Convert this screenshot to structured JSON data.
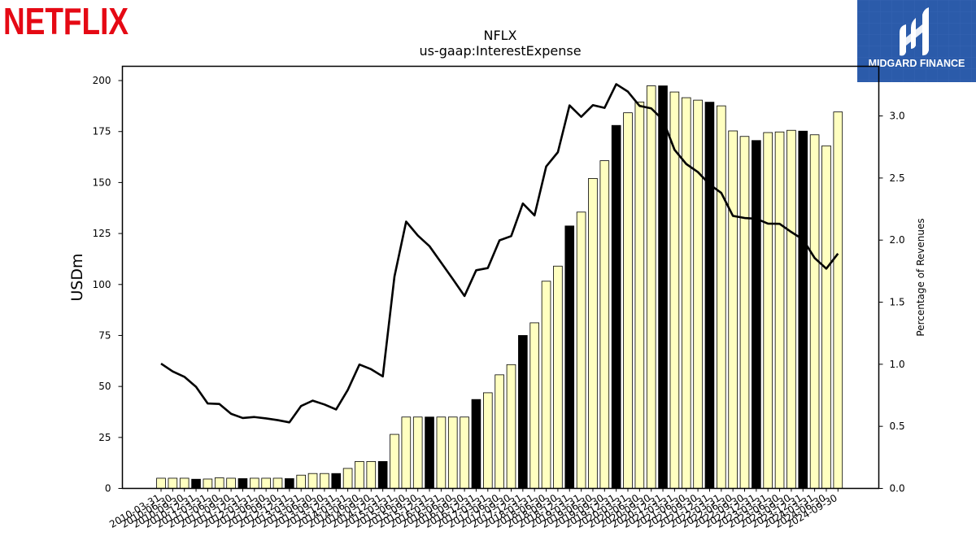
{
  "brand": {
    "logo_text": "NETFLIX",
    "logo_color": "#E50914"
  },
  "badge": {
    "text": "MIDGARD FINANCE",
    "bg_color": "#2B5BAA"
  },
  "chart_data": {
    "type": "bar+line",
    "title": "NFLX",
    "subtitle": "us-gaap:InterestExpense",
    "ylabel": "USDm",
    "y2label": "Percentage of Revenues",
    "ylim": [
      0,
      207
    ],
    "y2lim": [
      0,
      3.4
    ],
    "yticks": [
      0,
      25,
      50,
      75,
      100,
      125,
      150,
      175,
      200
    ],
    "y2ticks": [
      "0.0",
      "0.5",
      "1.0",
      "1.5",
      "2.0",
      "2.5",
      "3.0"
    ],
    "bar_color_default": "#FFFFC0",
    "bar_color_highlight": "#000000",
    "line_color": "#000000",
    "categories": [
      "2010-03-31",
      "2010-06-30",
      "2010-09-30",
      "2010-12-31",
      "2011-03-31",
      "2011-06-30",
      "2011-09-30",
      "2011-12-31",
      "2012-03-31",
      "2012-06-30",
      "2012-09-30",
      "2012-12-31",
      "2013-03-31",
      "2013-06-30",
      "2013-09-30",
      "2013-12-31",
      "2014-03-31",
      "2014-06-30",
      "2014-09-30",
      "2014-12-31",
      "2015-03-31",
      "2015-06-30",
      "2015-09-30",
      "2015-12-31",
      "2016-03-31",
      "2016-06-30",
      "2016-09-30",
      "2016-12-31",
      "2017-03-31",
      "2017-06-30",
      "2017-09-30",
      "2017-12-31",
      "2018-03-31",
      "2018-06-30",
      "2018-09-30",
      "2018-12-31",
      "2019-03-31",
      "2019-06-30",
      "2019-09-30",
      "2019-12-31",
      "2020-03-31",
      "2020-06-30",
      "2020-09-30",
      "2020-12-31",
      "2021-03-31",
      "2021-06-30",
      "2021-09-30",
      "2021-12-31",
      "2022-03-31",
      "2022-06-30",
      "2022-09-30",
      "2022-12-31",
      "2023-03-31",
      "2023-06-30",
      "2023-09-30",
      "2023-12-31",
      "2024-03-31",
      "2024-06-30",
      "2024-09-30"
    ],
    "values": [
      5,
      5,
      5,
      4.5,
      4.6,
      5.2,
      5.0,
      4.8,
      5.0,
      5.0,
      5.0,
      4.8,
      6.5,
      7.3,
      7.3,
      7.3,
      9.8,
      13.2,
      13.2,
      13.2,
      26.5,
      35,
      35,
      35,
      35,
      35,
      35,
      43.6,
      46.9,
      55.7,
      60.7,
      75,
      81.2,
      101.6,
      109,
      128.7,
      135.5,
      152,
      160.7,
      178,
      184.2,
      189.5,
      197.4,
      197.4,
      194.4,
      191.6,
      190.4,
      189.4,
      187.6,
      175.3,
      172.6,
      170.6,
      174.5,
      174.8,
      175.6,
      175.2,
      173.4,
      168,
      184.6
    ],
    "highlight": [
      false,
      false,
      false,
      true,
      false,
      false,
      false,
      true,
      false,
      false,
      false,
      true,
      false,
      false,
      false,
      true,
      false,
      false,
      false,
      true,
      false,
      false,
      false,
      true,
      false,
      false,
      false,
      true,
      false,
      false,
      false,
      true,
      false,
      false,
      false,
      true,
      false,
      false,
      false,
      true,
      false,
      false,
      false,
      true,
      false,
      false,
      false,
      true,
      false,
      false,
      false,
      true,
      false,
      false,
      false,
      true,
      false,
      false,
      false
    ],
    "pct_of_revenues": [
      1.005,
      0.942,
      0.899,
      0.818,
      0.684,
      0.68,
      0.601,
      0.567,
      0.575,
      0.564,
      0.55,
      0.532,
      0.664,
      0.707,
      0.676,
      0.636,
      0.793,
      0.998,
      0.96,
      0.902,
      1.707,
      2.149,
      2.037,
      1.951,
      1.819,
      1.686,
      1.55,
      1.757,
      1.775,
      1.998,
      2.032,
      2.295,
      2.199,
      2.593,
      2.708,
      3.085,
      2.993,
      3.087,
      3.065,
      3.256,
      3.196,
      3.081,
      3.061,
      2.969,
      2.727,
      2.613,
      2.548,
      2.449,
      2.38,
      2.195,
      2.178,
      2.172,
      2.133,
      2.131,
      2.065,
      2.005,
      1.856,
      1.77,
      1.891
    ]
  }
}
